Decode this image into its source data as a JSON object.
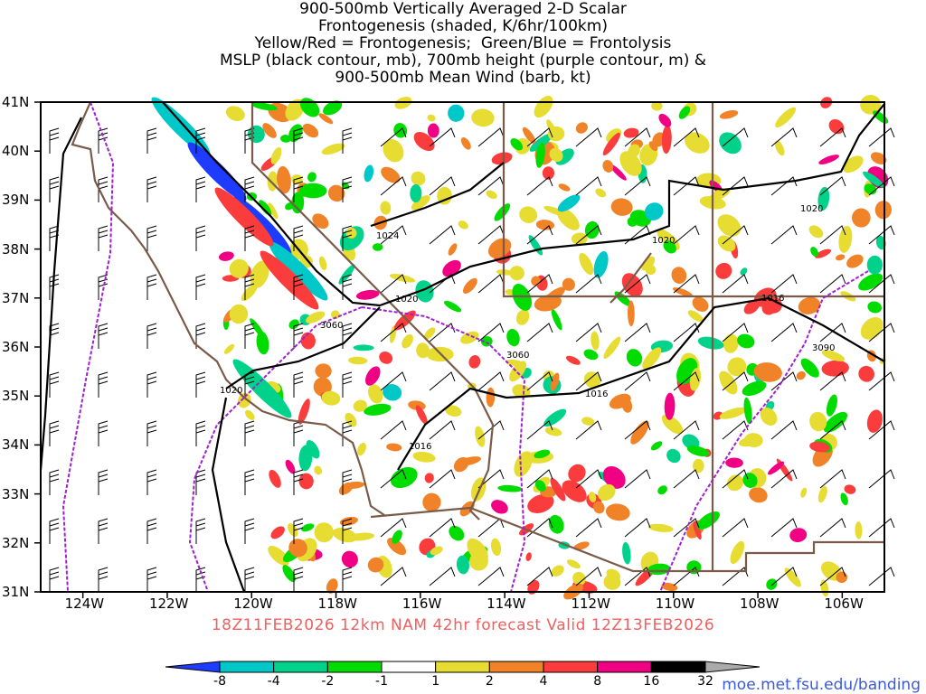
{
  "title": {
    "lines": [
      "900-500mb Vertically Averaged 2-D Scalar",
      "Frontogenesis (shaded, K/6hr/100km)",
      "Yellow/Red = Frontogenesis;  Green/Blue = Frontolysis",
      "MSLP (black contour, mb), 700mb height (purple contour, m) &",
      "900-500mb Mean Wind (barb, kt)"
    ]
  },
  "axes": {
    "lat_labels": [
      "41N",
      "40N",
      "39N",
      "38N",
      "37N",
      "36N",
      "35N",
      "34N",
      "33N",
      "32N",
      "31N"
    ],
    "lon_labels": [
      "124W",
      "122W",
      "120W",
      "118W",
      "116W",
      "114W",
      "112W",
      "110W",
      "108W",
      "106W"
    ]
  },
  "contour_labels": {
    "mslp": [
      "1024",
      "1020",
      "1020",
      "1020",
      "1016",
      "1016",
      "1016",
      "1020"
    ],
    "height": [
      "3060",
      "3060",
      "3090"
    ]
  },
  "subtitle": "18Z11FEB2026 12km NAM 42hr forecast Valid 12Z13FEB2026",
  "colorbar": {
    "colors": [
      "#1e3cff",
      "#00c8c8",
      "#00d28c",
      "#00dc00",
      "#ffffff",
      "#e6dc32",
      "#f08228",
      "#fa3c3c",
      "#f00082",
      "#000000",
      "#aaaaaa"
    ],
    "labels": [
      "-8",
      "-4",
      "-2",
      "-1",
      "1",
      "2",
      "4",
      "8",
      "16",
      "32"
    ]
  },
  "credit": "moe.met.fsu.edu/banding"
}
